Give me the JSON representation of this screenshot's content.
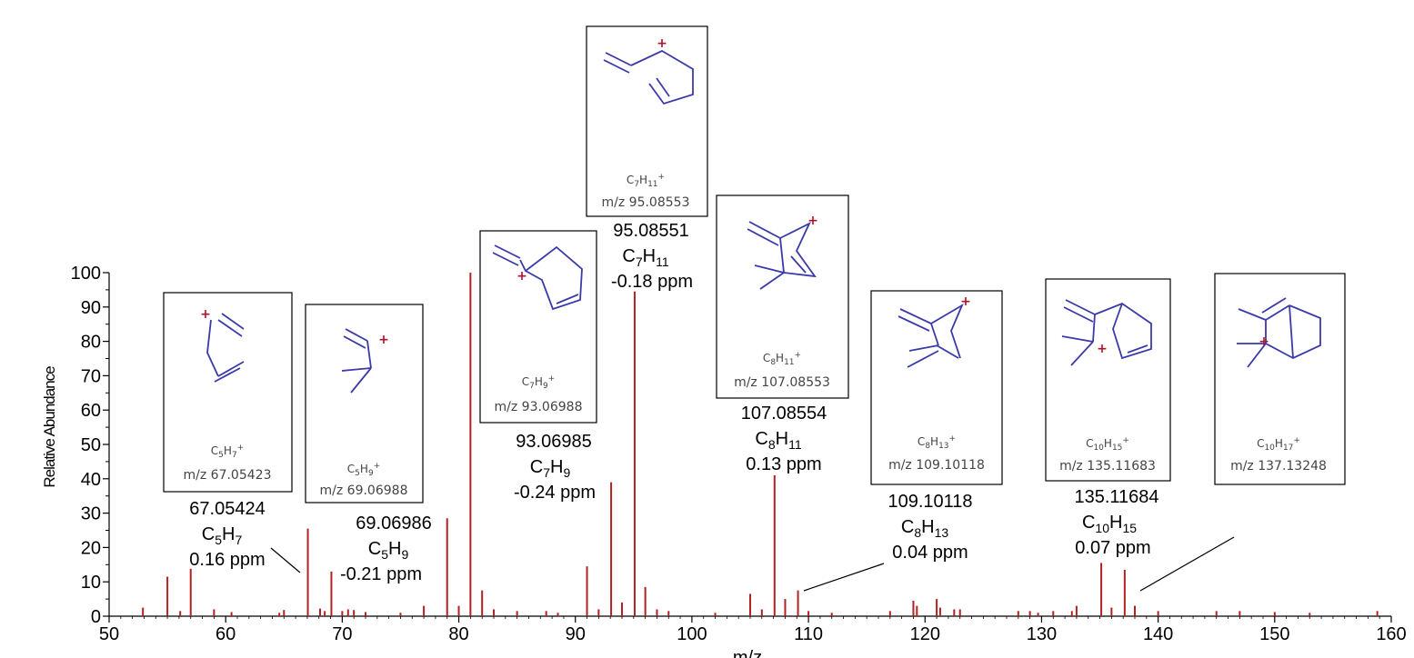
{
  "chart_data": {
    "type": "bar",
    "xlabel": "m/z",
    "ylabel": "Relative Abundance",
    "xlim": [
      50,
      160
    ],
    "ylim": [
      0,
      100
    ],
    "x_ticks": [
      50,
      60,
      70,
      80,
      90,
      100,
      110,
      120,
      130,
      140,
      150,
      160
    ],
    "y_ticks": [
      0,
      10,
      20,
      30,
      40,
      50,
      60,
      70,
      80,
      90,
      100
    ],
    "x_tick_labels": [
      "50",
      "60",
      "70",
      "80",
      "90",
      "100",
      "110",
      "120",
      "130",
      "140",
      "150",
      "160"
    ],
    "y_tick_labels": [
      "0",
      "10",
      "20",
      "30",
      "40",
      "50",
      "60",
      "70",
      "80",
      "90",
      "100"
    ],
    "series_color": "#b22222",
    "peaks": [
      {
        "mz": 52.9,
        "ab": 2.5
      },
      {
        "mz": 55.0,
        "ab": 11.5
      },
      {
        "mz": 56.1,
        "ab": 1.5
      },
      {
        "mz": 57.0,
        "ab": 13.8
      },
      {
        "mz": 59.0,
        "ab": 2.0
      },
      {
        "mz": 60.5,
        "ab": 1.2
      },
      {
        "mz": 64.6,
        "ab": 1.0
      },
      {
        "mz": 65.0,
        "ab": 1.8
      },
      {
        "mz": 67.05,
        "ab": 25.5
      },
      {
        "mz": 68.1,
        "ab": 2.2
      },
      {
        "mz": 68.5,
        "ab": 1.5
      },
      {
        "mz": 69.07,
        "ab": 13.0
      },
      {
        "mz": 70.0,
        "ab": 1.5
      },
      {
        "mz": 70.5,
        "ab": 2.0
      },
      {
        "mz": 71.0,
        "ab": 1.8
      },
      {
        "mz": 72.0,
        "ab": 1.2
      },
      {
        "mz": 75.0,
        "ab": 1.0
      },
      {
        "mz": 77.0,
        "ab": 3.0
      },
      {
        "mz": 79.0,
        "ab": 28.5
      },
      {
        "mz": 80.0,
        "ab": 3.0
      },
      {
        "mz": 81.0,
        "ab": 100.0
      },
      {
        "mz": 82.0,
        "ab": 7.5
      },
      {
        "mz": 83.0,
        "ab": 2.0
      },
      {
        "mz": 85.0,
        "ab": 1.5
      },
      {
        "mz": 87.5,
        "ab": 1.5
      },
      {
        "mz": 88.5,
        "ab": 1.0
      },
      {
        "mz": 91.0,
        "ab": 14.5
      },
      {
        "mz": 92.0,
        "ab": 2.0
      },
      {
        "mz": 93.07,
        "ab": 39.0
      },
      {
        "mz": 94.0,
        "ab": 4.0
      },
      {
        "mz": 95.09,
        "ab": 94.5
      },
      {
        "mz": 96.0,
        "ab": 8.5
      },
      {
        "mz": 97.0,
        "ab": 2.0
      },
      {
        "mz": 98.0,
        "ab": 1.5
      },
      {
        "mz": 102.0,
        "ab": 1.0
      },
      {
        "mz": 105.0,
        "ab": 6.5
      },
      {
        "mz": 106.0,
        "ab": 2.0
      },
      {
        "mz": 107.09,
        "ab": 41.0
      },
      {
        "mz": 108.0,
        "ab": 5.0
      },
      {
        "mz": 109.1,
        "ab": 7.5
      },
      {
        "mz": 110.0,
        "ab": 1.5
      },
      {
        "mz": 112.0,
        "ab": 1.0
      },
      {
        "mz": 117.0,
        "ab": 1.5
      },
      {
        "mz": 119.0,
        "ab": 4.5
      },
      {
        "mz": 119.3,
        "ab": 3.0
      },
      {
        "mz": 121.0,
        "ab": 5.0
      },
      {
        "mz": 121.3,
        "ab": 2.5
      },
      {
        "mz": 122.5,
        "ab": 2.0
      },
      {
        "mz": 123.0,
        "ab": 2.0
      },
      {
        "mz": 128.0,
        "ab": 1.5
      },
      {
        "mz": 129.0,
        "ab": 1.5
      },
      {
        "mz": 129.7,
        "ab": 1.0
      },
      {
        "mz": 131.0,
        "ab": 1.5
      },
      {
        "mz": 132.6,
        "ab": 1.5
      },
      {
        "mz": 133.0,
        "ab": 3.0
      },
      {
        "mz": 135.12,
        "ab": 15.5
      },
      {
        "mz": 136.0,
        "ab": 2.5
      },
      {
        "mz": 137.13,
        "ab": 13.5
      },
      {
        "mz": 138.0,
        "ab": 3.0
      },
      {
        "mz": 140.0,
        "ab": 1.5
      },
      {
        "mz": 145.0,
        "ab": 1.5
      },
      {
        "mz": 147.0,
        "ab": 1.5
      },
      {
        "mz": 150.0,
        "ab": 1.2
      },
      {
        "mz": 153.0,
        "ab": 1.0
      },
      {
        "mz": 158.8,
        "ab": 1.5
      }
    ],
    "annotations": [
      {
        "mass": "67.05424",
        "formula_main": "C",
        "formula_sub1": "5",
        "formula_mid": "H",
        "formula_sub2": "7",
        "ppm": "0.16 ppm"
      },
      {
        "mass": "69.06986",
        "formula_main": "C",
        "formula_sub1": "5",
        "formula_mid": "H",
        "formula_sub2": "9",
        "ppm": "-0.21 ppm"
      },
      {
        "mass": "93.06985",
        "formula_main": "C",
        "formula_sub1": "7",
        "formula_mid": "H",
        "formula_sub2": "9",
        "ppm": "-0.24 ppm"
      },
      {
        "mass": "95.08551",
        "formula_main": "C",
        "formula_sub1": "7",
        "formula_mid": "H",
        "formula_sub2": "11",
        "ppm": "-0.18 ppm"
      },
      {
        "mass": "107.08554",
        "formula_main": "C",
        "formula_sub1": "8",
        "formula_mid": "H",
        "formula_sub2": "11",
        "ppm": "0.13 ppm"
      },
      {
        "mass": "109.10118",
        "formula_main": "C",
        "formula_sub1": "8",
        "formula_mid": "H",
        "formula_sub2": "13",
        "ppm": "0.04 ppm"
      },
      {
        "mass": "135.11684",
        "formula_main": "C",
        "formula_sub1": "10",
        "formula_mid": "H",
        "formula_sub2": "15",
        "ppm": "0.07 ppm"
      }
    ],
    "structure_boxes": [
      {
        "c": "5",
        "h": "7",
        "mz_label": "m/z 67.05423"
      },
      {
        "c": "5",
        "h": "9",
        "mz_label": "m/z 69.06988"
      },
      {
        "c": "7",
        "h": "9",
        "mz_label": "m/z 93.06988"
      },
      {
        "c": "7",
        "h": "11",
        "mz_label": "m/z 95.08553"
      },
      {
        "c": "8",
        "h": "11",
        "mz_label": "m/z 107.08553"
      },
      {
        "c": "8",
        "h": "13",
        "mz_label": "m/z 109.10118"
      },
      {
        "c": "10",
        "h": "15",
        "mz_label": "m/z 135.11683"
      },
      {
        "c": "10",
        "h": "17",
        "mz_label": "m/z 137.13248"
      }
    ]
  }
}
